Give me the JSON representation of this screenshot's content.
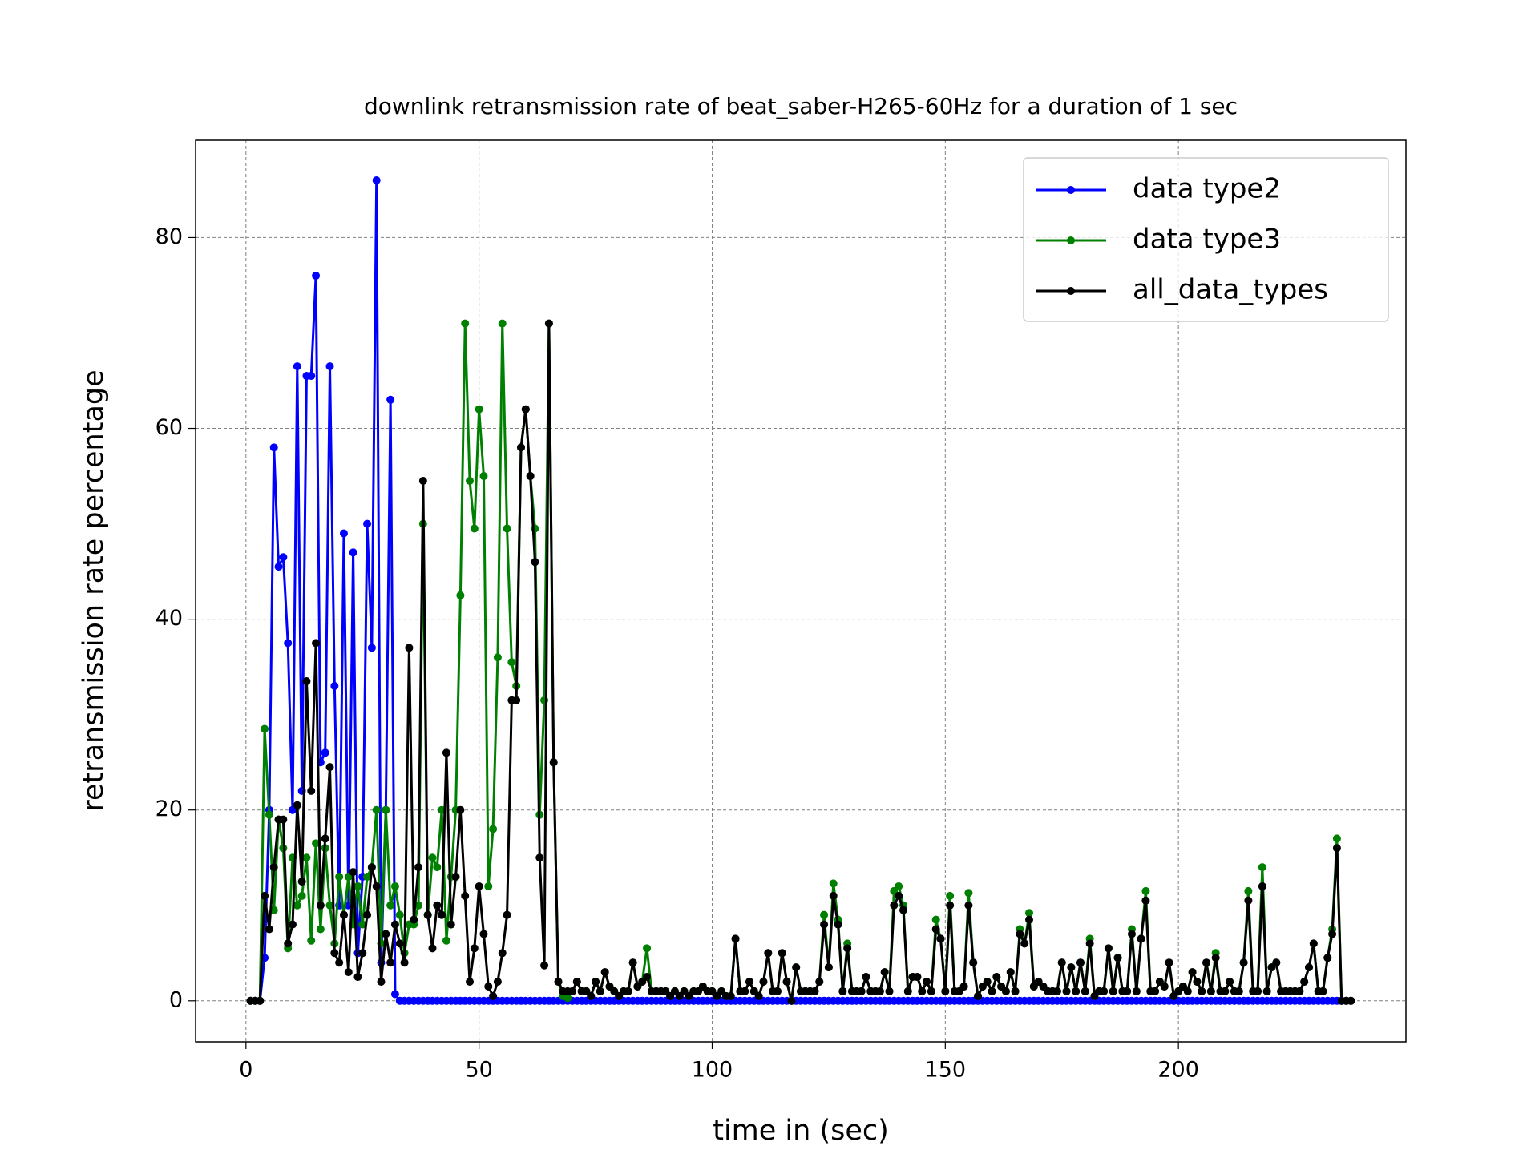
{
  "chart_data": {
    "type": "line",
    "title": "downlink retransmission rate of beat_saber-H265-60Hz for a duration of 1 sec",
    "xlabel": "time in (sec)",
    "ylabel": "retransmission rate percentage",
    "xlim": [
      -10.8,
      248.8
    ],
    "ylim": [
      -4.3,
      90.2
    ],
    "xticks": [
      0,
      50,
      100,
      150,
      200
    ],
    "yticks": [
      0,
      20,
      40,
      60,
      80
    ],
    "grid": true,
    "legend": "upper right",
    "x": [
      1,
      2,
      3,
      4,
      5,
      6,
      7,
      8,
      9,
      10,
      11,
      12,
      13,
      14,
      15,
      16,
      17,
      18,
      19,
      20,
      21,
      22,
      23,
      24,
      25,
      26,
      27,
      28,
      29,
      30,
      31,
      32,
      33,
      34,
      35,
      36,
      37,
      38,
      39,
      40,
      41,
      42,
      43,
      44,
      45,
      46,
      47,
      48,
      49,
      50,
      51,
      52,
      53,
      54,
      55,
      56,
      57,
      58,
      59,
      60,
      61,
      62,
      63,
      64,
      65,
      66,
      67,
      68,
      69,
      70,
      71,
      72,
      73,
      74,
      75,
      76,
      77,
      78,
      79,
      80,
      81,
      82,
      83,
      84,
      85,
      86,
      87,
      88,
      89,
      90,
      91,
      92,
      93,
      94,
      95,
      96,
      97,
      98,
      99,
      100,
      101,
      102,
      103,
      104,
      105,
      106,
      107,
      108,
      109,
      110,
      111,
      112,
      113,
      114,
      115,
      116,
      117,
      118,
      119,
      120,
      121,
      122,
      123,
      124,
      125,
      126,
      127,
      128,
      129,
      130,
      131,
      132,
      133,
      134,
      135,
      136,
      137,
      138,
      139,
      140,
      141,
      142,
      143,
      144,
      145,
      146,
      147,
      148,
      149,
      150,
      151,
      152,
      153,
      154,
      155,
      156,
      157,
      158,
      159,
      160,
      161,
      162,
      163,
      164,
      165,
      166,
      167,
      168,
      169,
      170,
      171,
      172,
      173,
      174,
      175,
      176,
      177,
      178,
      179,
      180,
      181,
      182,
      183,
      184,
      185,
      186,
      187,
      188,
      189,
      190,
      191,
      192,
      193,
      194,
      195,
      196,
      197,
      198,
      199,
      200,
      201,
      202,
      203,
      204,
      205,
      206,
      207,
      208,
      209,
      210,
      211,
      212,
      213,
      214,
      215,
      216,
      217,
      218,
      219,
      220,
      221,
      222,
      223,
      224,
      225,
      226,
      227,
      228,
      229,
      230,
      231,
      232,
      233,
      234,
      235,
      236,
      237
    ],
    "series": [
      {
        "name": "data type2",
        "color": "#0000ff",
        "values": [
          0,
          0,
          0,
          4.5,
          20,
          58,
          45.5,
          46.5,
          37.5,
          20,
          66.5,
          22,
          65.5,
          65.5,
          76,
          25,
          26,
          66.5,
          33,
          10,
          49,
          10,
          47,
          5,
          13,
          50,
          37,
          86,
          4,
          20,
          63,
          0.7,
          0,
          0,
          0,
          0,
          0,
          0,
          0,
          0,
          0,
          0,
          0,
          0,
          0,
          0,
          0,
          0,
          0,
          0,
          0,
          0,
          0,
          0,
          0,
          0,
          0,
          0,
          0,
          0,
          0,
          0,
          0,
          0,
          0,
          0,
          0,
          0,
          0,
          0,
          0,
          0,
          0,
          0,
          0,
          0,
          0,
          0,
          0,
          0,
          0,
          0,
          0,
          0,
          0,
          0,
          0,
          0,
          0,
          0,
          0,
          0,
          0,
          0,
          0,
          0,
          0,
          0,
          0,
          0,
          0,
          0,
          0,
          0,
          0,
          0,
          0,
          0,
          0,
          0,
          0,
          0,
          0,
          0,
          0,
          0,
          0,
          0,
          0,
          0,
          0,
          0,
          0,
          0,
          0,
          0,
          0,
          0,
          0,
          0,
          0,
          0,
          0,
          0,
          0,
          0,
          0,
          0,
          0,
          0,
          0,
          0,
          0,
          0,
          0,
          0,
          0,
          0,
          0,
          0,
          0,
          0,
          0,
          0,
          0,
          0,
          0,
          0,
          0,
          0,
          0,
          0,
          0,
          0,
          0,
          0,
          0,
          0,
          0,
          0,
          0,
          0,
          0,
          0,
          0,
          0,
          0,
          0,
          0,
          0,
          0,
          0,
          0,
          0,
          0,
          0,
          0,
          0,
          0,
          0,
          0,
          0,
          0,
          0,
          0,
          0,
          0,
          0,
          0,
          0,
          0,
          0,
          0,
          0,
          0,
          0,
          0,
          0,
          0,
          0,
          0,
          0,
          0,
          0,
          0,
          0,
          0,
          0,
          0,
          0,
          0,
          0,
          0,
          0,
          0,
          0,
          0,
          0,
          0,
          0,
          0,
          0,
          0,
          0,
          0,
          0,
          0
        ]
      },
      {
        "name": "data type3",
        "color": "#008000",
        "values": [
          0,
          0,
          0,
          28.5,
          19.5,
          9.5,
          19,
          16,
          5.5,
          15,
          10,
          11,
          15,
          6.3,
          16.5,
          7.5,
          16,
          10,
          6,
          13,
          9,
          13,
          8,
          12,
          8,
          13,
          14,
          20,
          6,
          20,
          10,
          12,
          9,
          5,
          8,
          8,
          10,
          50,
          9,
          15,
          14,
          20,
          6.3,
          13,
          20,
          42.5,
          71,
          54.5,
          49.5,
          62,
          55,
          12,
          18,
          36,
          71,
          49.5,
          35.5,
          33,
          58,
          62,
          55,
          49.5,
          19.5,
          31.5,
          71,
          25,
          2,
          0.5,
          0.3,
          1,
          2,
          1,
          1,
          0.5,
          2,
          1,
          3,
          1.5,
          1,
          0.5,
          1,
          1,
          4,
          1.5,
          2,
          5.5,
          1,
          1,
          1,
          1,
          0.5,
          1,
          0.5,
          1,
          0.5,
          1,
          1,
          1.5,
          1,
          1,
          0.5,
          1,
          0.5,
          0.5,
          6.5,
          1,
          1,
          2,
          1,
          0.5,
          2,
          5,
          1,
          1,
          5,
          2,
          0,
          3.5,
          1,
          1,
          1,
          1,
          2,
          9,
          3.5,
          12.3,
          8.5,
          1,
          6,
          1,
          1,
          1,
          2.5,
          1,
          1,
          1,
          3,
          1,
          11.5,
          12,
          10,
          1,
          2.5,
          2.5,
          1,
          2,
          1,
          8.5,
          6.5,
          1,
          11,
          1,
          1,
          1.5,
          11.3,
          4,
          0.5,
          1.5,
          2,
          1,
          2.5,
          1.5,
          1,
          3,
          1,
          7.5,
          6,
          9.2,
          1.5,
          2,
          1.5,
          1,
          1,
          1,
          4,
          1,
          3.5,
          1,
          4,
          1,
          6.5,
          0.5,
          1,
          1,
          5.5,
          1,
          4.5,
          1,
          1,
          7.5,
          1,
          6.5,
          11.5,
          1,
          1,
          2,
          1.5,
          4,
          0.5,
          1,
          1.5,
          1,
          3,
          2,
          1,
          4,
          1,
          5,
          1,
          1,
          2,
          1,
          1,
          4,
          11.5,
          1,
          1,
          14,
          1,
          3.5,
          4,
          1,
          1,
          1,
          1,
          1,
          2,
          3.5,
          6,
          1,
          1,
          4.5,
          7.5,
          17,
          0,
          0,
          0
        ]
      },
      {
        "name": "all_data_types",
        "color": "#000000",
        "values": [
          0,
          0,
          0,
          11,
          7.5,
          14,
          19,
          19,
          6,
          8,
          20.5,
          12.5,
          33.5,
          22,
          37.5,
          10,
          17,
          24.5,
          5,
          4,
          9,
          3,
          13.5,
          2.5,
          5,
          9,
          14,
          12,
          2,
          7,
          4,
          8,
          6,
          4,
          37,
          8.5,
          14,
          54.5,
          9,
          5.5,
          10,
          9,
          26,
          8,
          13,
          20,
          11,
          2,
          5.5,
          12,
          7,
          1.5,
          0.5,
          2,
          5,
          9,
          31.5,
          31.5,
          58,
          62,
          55,
          46,
          15,
          3.7,
          71,
          25,
          2,
          1,
          1,
          1,
          2,
          1,
          1,
          0.5,
          2,
          1,
          3,
          1.5,
          1,
          0.5,
          1,
          1,
          4,
          1.5,
          2,
          2.5,
          1,
          1,
          1,
          1,
          0.5,
          1,
          0.5,
          1,
          0.5,
          1,
          1,
          1.5,
          1,
          1,
          0.5,
          1,
          0.5,
          0.5,
          6.5,
          1,
          1,
          2,
          1,
          0.5,
          2,
          5,
          1,
          1,
          5,
          2,
          0,
          3.5,
          1,
          1,
          1,
          1,
          2,
          8,
          3.5,
          11,
          8,
          1,
          5.5,
          1,
          1,
          1,
          2.5,
          1,
          1,
          1,
          3,
          1,
          10,
          11,
          9.5,
          1,
          2.5,
          2.5,
          1,
          2,
          1,
          7.5,
          6.5,
          1,
          10,
          1,
          1,
          1.5,
          10,
          4,
          0.5,
          1.5,
          2,
          1,
          2.5,
          1.5,
          1,
          3,
          1,
          7,
          6,
          8.5,
          1.5,
          2,
          1.5,
          1,
          1,
          1,
          4,
          1,
          3.5,
          1,
          4,
          1,
          6,
          0.5,
          1,
          1,
          5.5,
          1,
          4.5,
          1,
          1,
          7,
          1,
          6.5,
          10.5,
          1,
          1,
          2,
          1.5,
          4,
          0.5,
          1,
          1.5,
          1,
          3,
          2,
          1,
          4,
          1,
          4.5,
          1,
          1,
          2,
          1,
          1,
          4,
          10.5,
          1,
          1,
          12,
          1,
          3.5,
          4,
          1,
          1,
          1,
          1,
          1,
          2,
          3.5,
          6,
          1,
          1,
          4.5,
          7,
          16,
          0,
          0,
          0
        ]
      }
    ]
  }
}
